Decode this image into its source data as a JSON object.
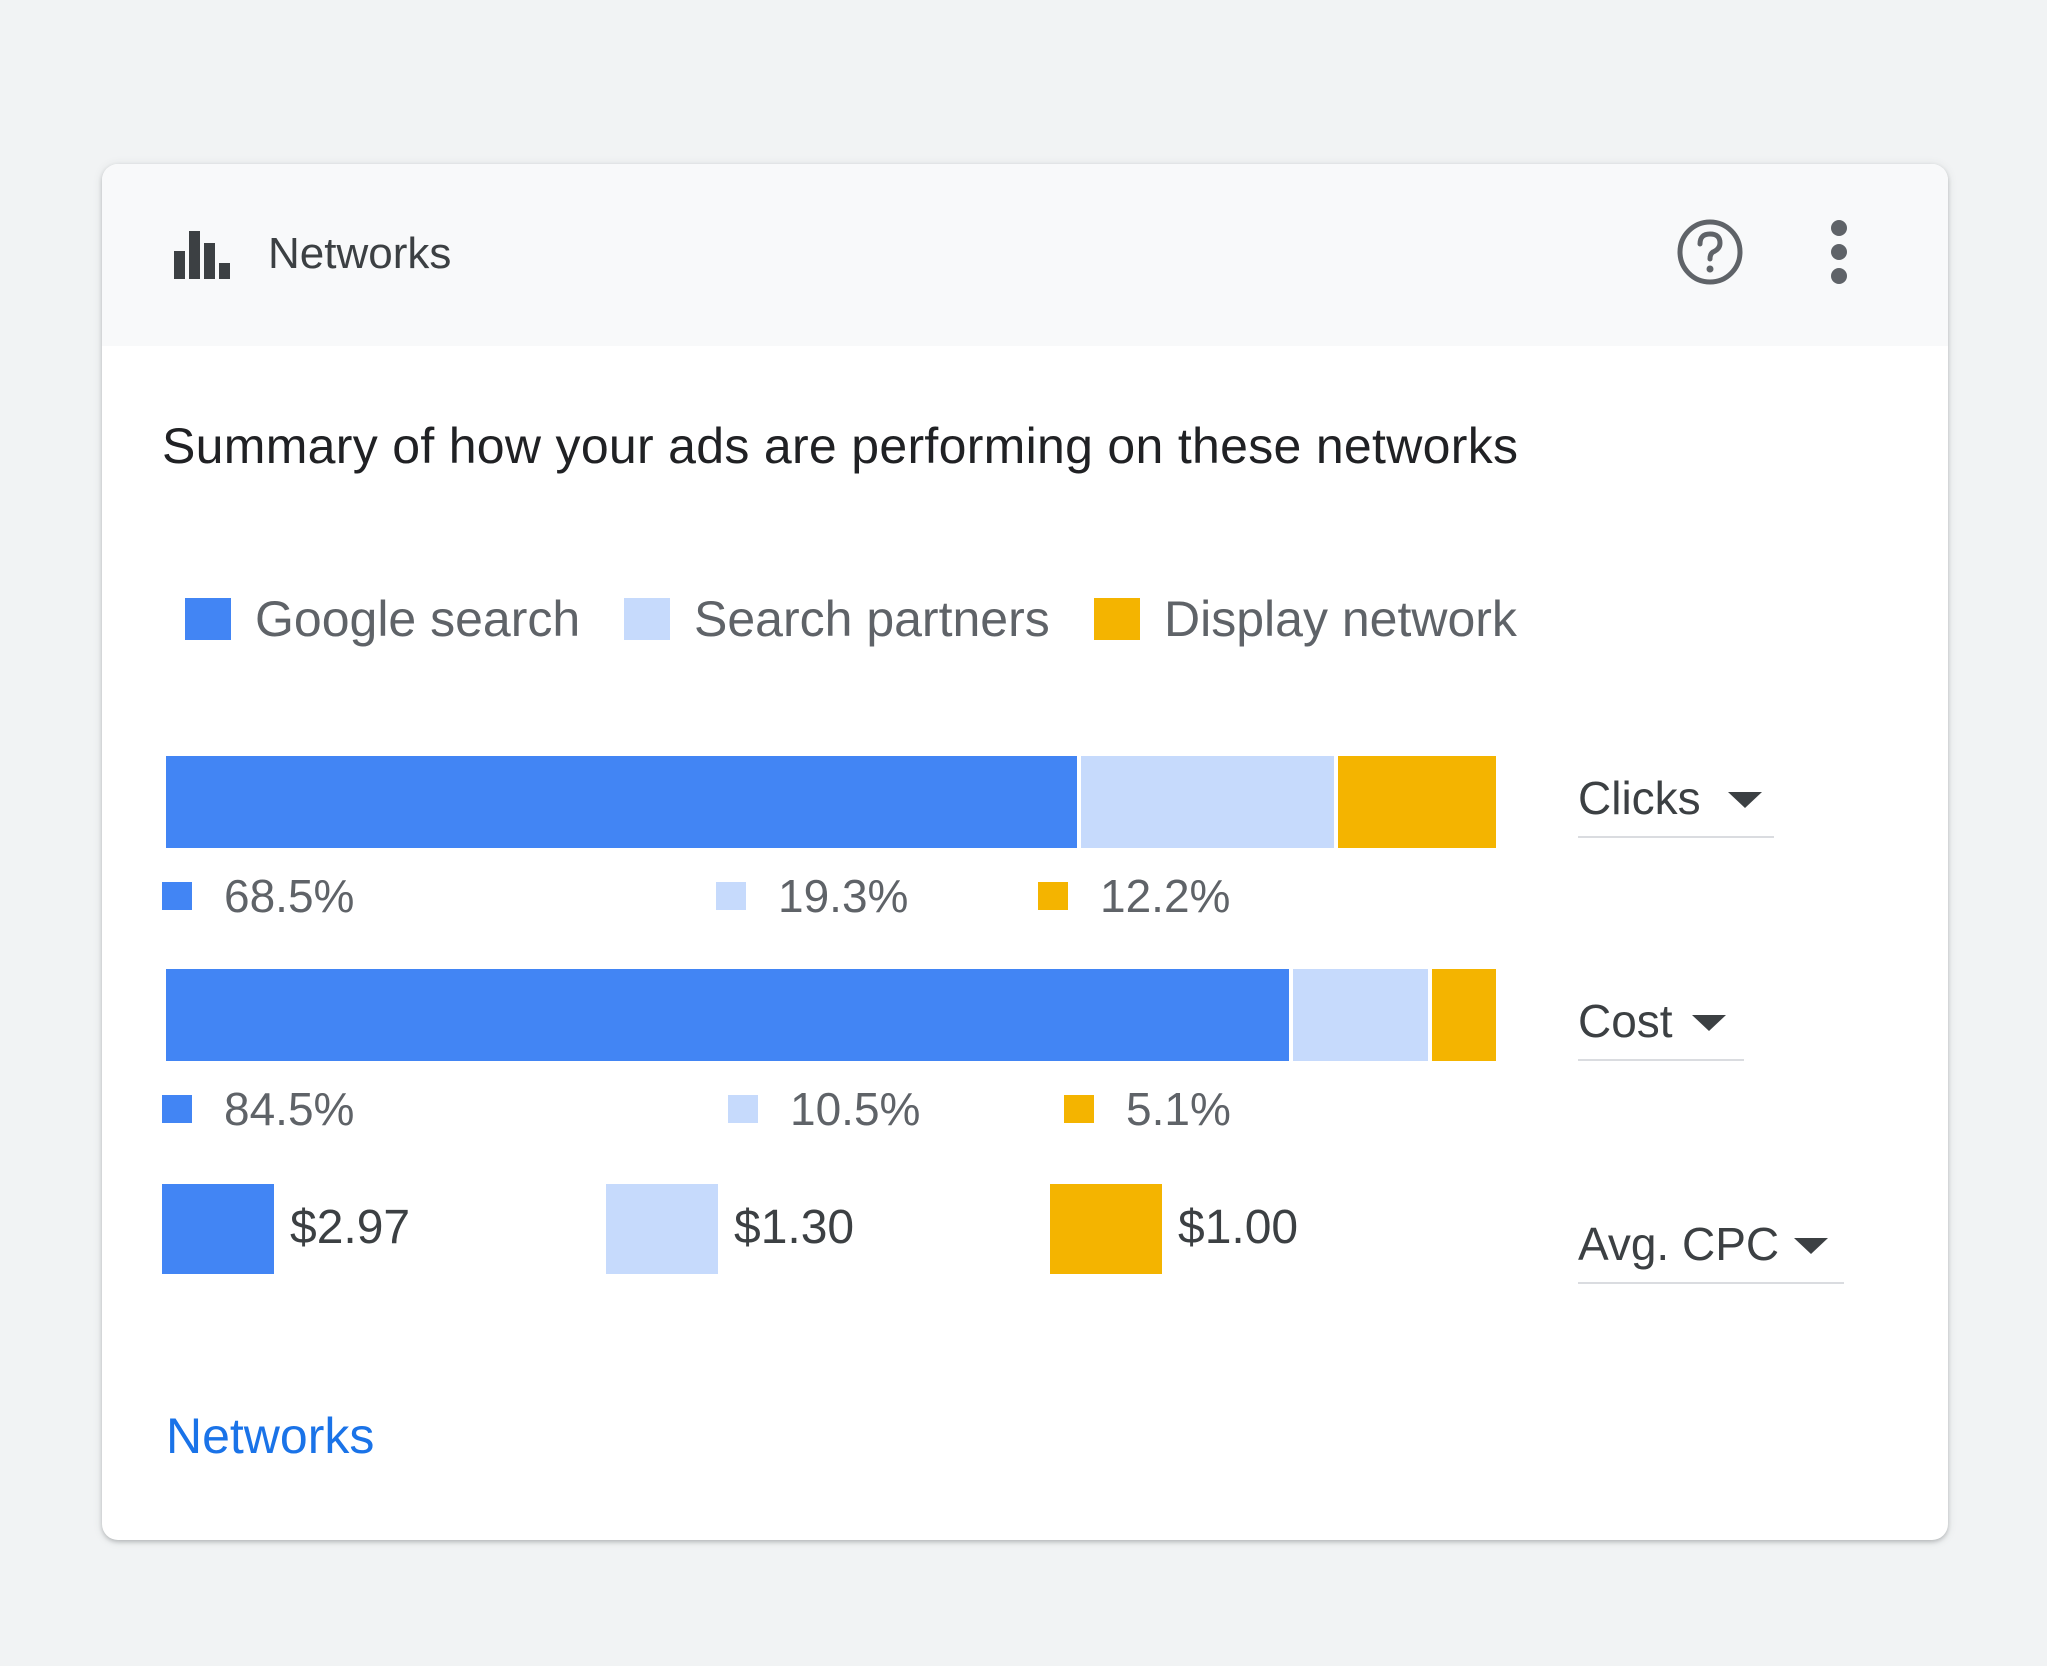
{
  "header": {
    "icon": "bar-chart-icon",
    "title": "Networks",
    "help_icon": "help-circle-icon",
    "more_icon": "more-vert-icon"
  },
  "summary": "Summary of how your ads are performing on these networks",
  "colors": {
    "google_search": "#4285f4",
    "search_partners": "#c6dafc",
    "display_network": "#f4b400",
    "link": "#1a73e8"
  },
  "legend": [
    {
      "label": "Google search",
      "color": "#4285f4"
    },
    {
      "label": "Search partners",
      "color": "#c6dafc"
    },
    {
      "label": "Display network",
      "color": "#f4b400"
    }
  ],
  "chart_data": {
    "type": "bar",
    "stacked": true,
    "orientation": "horizontal",
    "series_names": [
      "Google search",
      "Search partners",
      "Display network"
    ],
    "rows": [
      {
        "metric": "Clicks",
        "values": [
          68.5,
          19.3,
          12.2
        ],
        "labels": [
          "68.5%",
          "19.3%",
          "12.2%"
        ]
      },
      {
        "metric": "Cost",
        "values": [
          84.5,
          10.5,
          5.1
        ],
        "labels": [
          "84.5%",
          "10.5%",
          "5.1%"
        ]
      }
    ],
    "cpc": {
      "metric": "Avg. CPC",
      "values": [
        2.97,
        1.3,
        1.0
      ],
      "labels": [
        "$2.97",
        "$1.30",
        "$1.00"
      ]
    },
    "legend_position": "top-left"
  },
  "metric_selectors": [
    "Clicks",
    "Cost",
    "Avg. CPC"
  ],
  "footer_link": "Networks"
}
